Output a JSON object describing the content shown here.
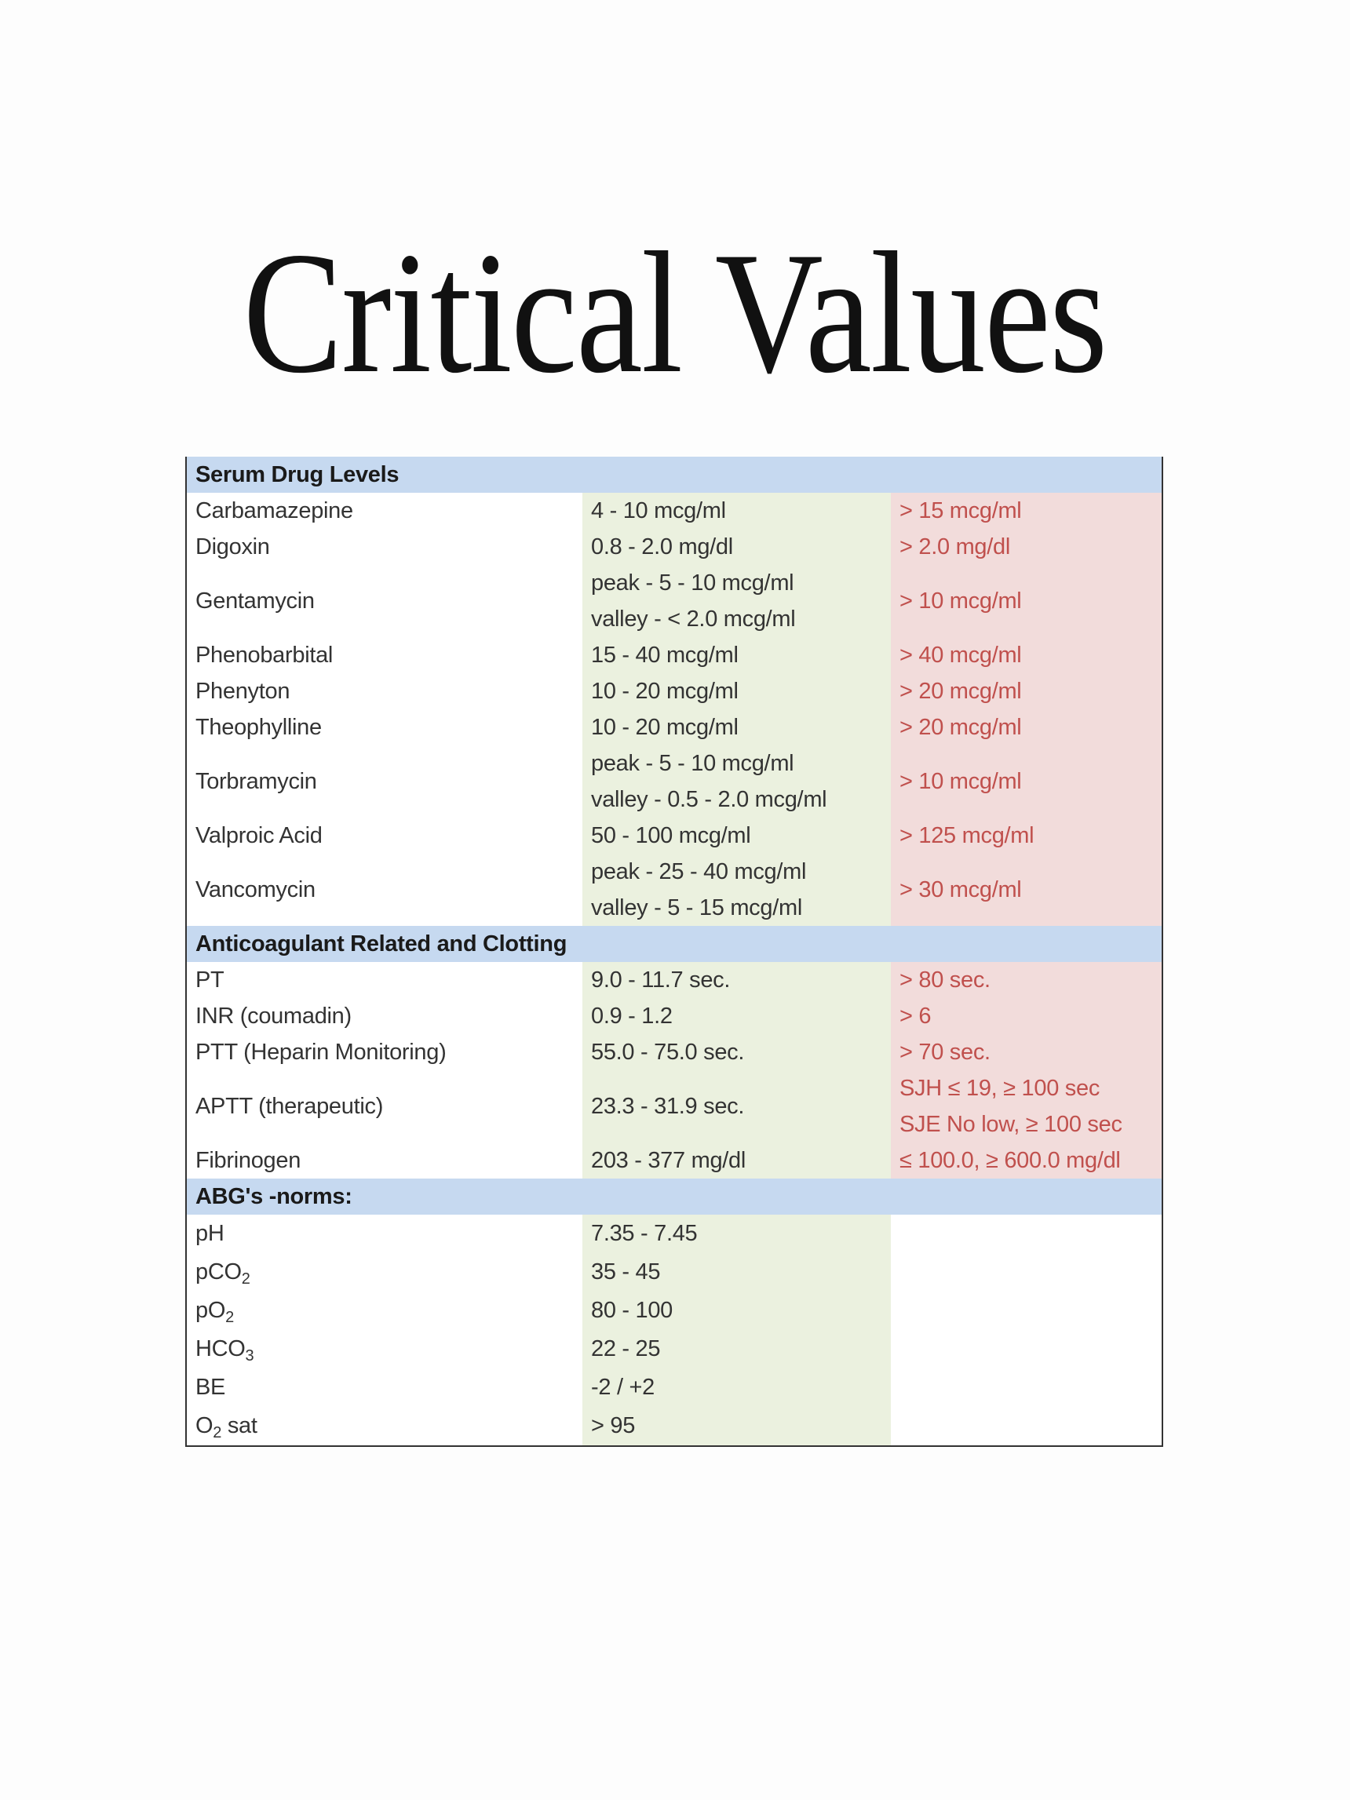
{
  "title": "Critical Values",
  "sections": [
    {
      "header": "Serum Drug Levels",
      "rows": [
        {
          "name": [
            {
              "t": "Carbamazepine"
            }
          ],
          "normal": [
            "4 - 10 mcg/ml"
          ],
          "critical": [
            "> 15 mcg/ml"
          ]
        },
        {
          "name": [
            {
              "t": "Digoxin"
            }
          ],
          "normal": [
            "0.8 - 2.0 mg/dl"
          ],
          "critical": [
            "> 2.0 mg/dl"
          ]
        },
        {
          "name": [
            {
              "t": "Gentamycin"
            }
          ],
          "normal": [
            "peak -  5 - 10 mcg/ml",
            "valley -  < 2.0 mcg/ml"
          ],
          "critical": [
            "> 10 mcg/ml"
          ]
        },
        {
          "name": [
            {
              "t": "Phenobarbital"
            }
          ],
          "normal": [
            "15 - 40 mcg/ml"
          ],
          "critical": [
            "> 40 mcg/ml"
          ]
        },
        {
          "name": [
            {
              "t": "Phenyton"
            }
          ],
          "normal": [
            "10 - 20 mcg/ml"
          ],
          "critical": [
            "> 20 mcg/ml"
          ]
        },
        {
          "name": [
            {
              "t": "Theophylline"
            }
          ],
          "normal": [
            "10 - 20 mcg/ml"
          ],
          "critical": [
            "> 20 mcg/ml"
          ]
        },
        {
          "name": [
            {
              "t": "Torbramycin"
            }
          ],
          "normal": [
            "peak -  5 - 10 mcg/ml",
            "valley -  0.5 - 2.0 mcg/ml"
          ],
          "critical": [
            "> 10 mcg/ml"
          ]
        },
        {
          "name": [
            {
              "t": "Valproic Acid"
            }
          ],
          "normal": [
            "50 - 100 mcg/ml"
          ],
          "critical": [
            "> 125 mcg/ml"
          ]
        },
        {
          "name": [
            {
              "t": "Vancomycin"
            }
          ],
          "normal": [
            "peak -  25 - 40 mcg/ml",
            "valley -  5 - 15 mcg/ml"
          ],
          "critical": [
            "> 30 mcg/ml"
          ]
        }
      ]
    },
    {
      "header": "Anticoagulant Related and Clotting",
      "rows": [
        {
          "name": [
            {
              "t": "PT"
            }
          ],
          "normal": [
            "9.0 - 11.7 sec."
          ],
          "critical": [
            "> 80 sec."
          ]
        },
        {
          "name": [
            {
              "t": "INR (coumadin)"
            }
          ],
          "normal": [
            "0.9 - 1.2"
          ],
          "critical": [
            "> 6"
          ]
        },
        {
          "name": [
            {
              "t": "PTT (Heparin Monitoring)"
            }
          ],
          "normal": [
            "55.0 - 75.0 sec."
          ],
          "critical": [
            "> 70 sec."
          ]
        },
        {
          "name": [
            {
              "t": "APTT (therapeutic)"
            }
          ],
          "normal": [
            "23.3 - 31.9 sec."
          ],
          "critical": [
            "SJH   ≤ 19, ≥ 100 sec",
            "SJE   No low, ≥ 100 sec"
          ]
        },
        {
          "name": [
            {
              "t": "Fibrinogen"
            }
          ],
          "normal": [
            "203 - 377 mg/dl"
          ],
          "critical": [
            "≤ 100.0, ≥ 600.0 mg/dl"
          ]
        }
      ]
    },
    {
      "header": "ABG's -norms:",
      "abg": true,
      "rows": [
        {
          "name": [
            {
              "t": "pH"
            }
          ],
          "normal": [
            "7.35 - 7.45"
          ],
          "critical": []
        },
        {
          "name": [
            {
              "t": "pCO"
            },
            {
              "sub": "2"
            }
          ],
          "normal": [
            "35 - 45"
          ],
          "critical": []
        },
        {
          "name": [
            {
              "t": "pO"
            },
            {
              "sub": "2"
            }
          ],
          "normal": [
            "80 - 100"
          ],
          "critical": []
        },
        {
          "name": [
            {
              "t": "HCO"
            },
            {
              "sub": "3"
            }
          ],
          "normal": [
            "22 - 25"
          ],
          "critical": []
        },
        {
          "name": [
            {
              "t": "BE"
            }
          ],
          "normal": [
            "-2 / +2"
          ],
          "critical": []
        },
        {
          "name": [
            {
              "t": "O"
            },
            {
              "sub": "2"
            },
            {
              "t": " sat"
            }
          ],
          "normal": [
            "> 95"
          ],
          "critical": []
        }
      ]
    }
  ],
  "colors": {
    "header_band": "#c6d9f0",
    "normal_column": "#ebf1df",
    "critical_column": "#f2dcdb",
    "critical_text": "#c0504d"
  }
}
